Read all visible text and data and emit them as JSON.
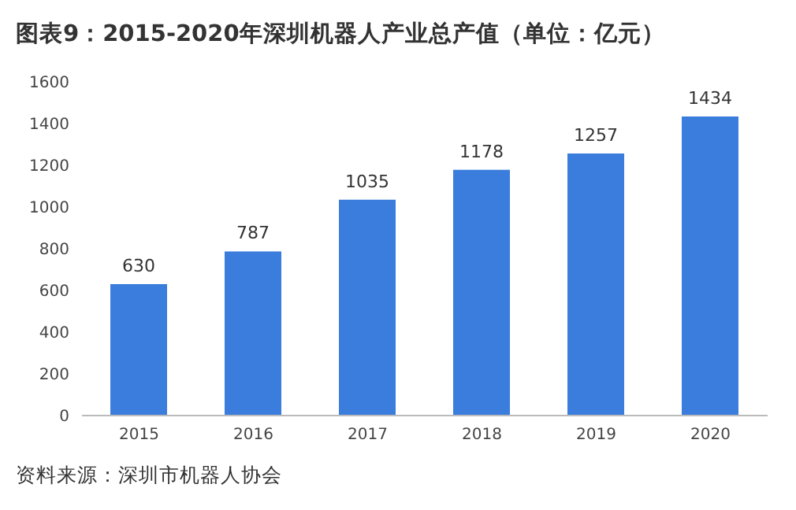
{
  "chart_data": {
    "type": "bar",
    "title": "图表9：2015-2020年深圳机器人产业总产值（单位：亿元）",
    "categories": [
      "2015",
      "2016",
      "2017",
      "2018",
      "2019",
      "2020"
    ],
    "values": [
      630,
      787,
      1035,
      1178,
      1257,
      1434
    ],
    "color": "#3b7ddd",
    "ylim": [
      0,
      1600
    ],
    "yticks": [
      0,
      200,
      400,
      600,
      800,
      1000,
      1200,
      1400,
      1600
    ],
    "grid": false,
    "data_labels": true,
    "annotations": [
      "资料来源：深圳市机器人协会"
    ]
  }
}
